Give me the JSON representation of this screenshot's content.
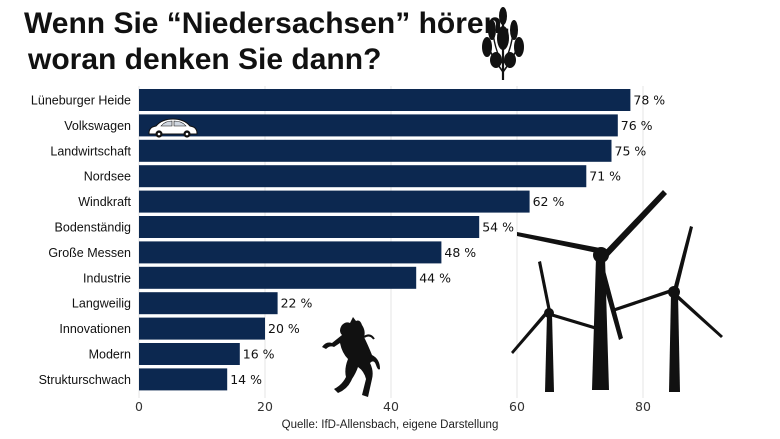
{
  "title": {
    "line1": "Wenn Sie “Niedersachsen” hören,",
    "line2": "woran denken Sie dann?"
  },
  "source": "Quelle: IfD-Allensbach, eigene Darstellung",
  "colors": {
    "bar": "#0c2850",
    "grid": "#e4e4e4",
    "ink": "#111111"
  },
  "icons": [
    "heather-plant-icon",
    "vw-beetle-icon",
    "horse-icon",
    "wind-turbines-icon"
  ],
  "chart_data": {
    "type": "bar",
    "orientation": "horizontal",
    "categories": [
      "Lüneburger Heide",
      "Volkswagen",
      "Landwirtschaft",
      "Nordsee",
      "Windkraft",
      "Bodenständig",
      "Große Messen",
      "Industrie",
      "Langweilig",
      "Innovationen",
      "Modern",
      "Strukturschwach"
    ],
    "values": [
      78,
      76,
      75,
      71,
      62,
      54,
      48,
      44,
      22,
      20,
      16,
      14
    ],
    "value_labels": [
      "78 %",
      "76 %",
      "75 %",
      "71 %",
      "62 %",
      "54 %",
      "48 %",
      "44 %",
      "22 %",
      "20 %",
      "16 %",
      "14 %"
    ],
    "xlim": [
      0,
      100
    ],
    "xticks": [
      0,
      20,
      40,
      60,
      80
    ],
    "xtick_labels": [
      "0",
      "20",
      "40",
      "60",
      "80"
    ],
    "grid": true,
    "legend": "none",
    "xlabel": "",
    "ylabel": ""
  }
}
